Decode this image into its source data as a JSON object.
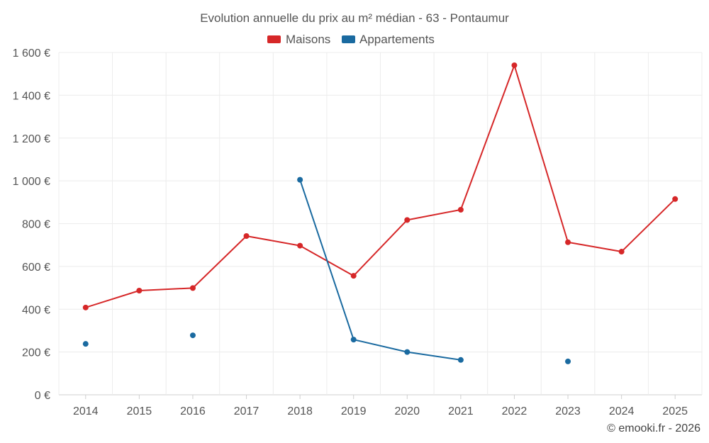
{
  "chart_data": {
    "type": "line",
    "title": "Evolution annuelle du prix au m² médian - 63 - Pontaumur",
    "categories": [
      "2014",
      "2015",
      "2016",
      "2017",
      "2018",
      "2019",
      "2020",
      "2021",
      "2022",
      "2023",
      "2024",
      "2025"
    ],
    "y_ticks": [
      "0 €",
      "200 €",
      "400 €",
      "600 €",
      "800 €",
      "1 000 €",
      "1 200 €",
      "1 400 €",
      "1 600 €"
    ],
    "ylim": [
      0,
      1600
    ],
    "series": [
      {
        "name": "Maisons",
        "color": "#d62728",
        "values": [
          408,
          487,
          499,
          742,
          697,
          556,
          817,
          865,
          1540,
          713,
          669,
          915
        ]
      },
      {
        "name": "Appartements",
        "color": "#1a6aa0",
        "values": [
          238,
          null,
          278,
          null,
          1005,
          258,
          200,
          163,
          null,
          156,
          null,
          null
        ]
      }
    ],
    "legend_position": "top-center",
    "grid": true
  },
  "credit": "© emooki.fr - 2026"
}
